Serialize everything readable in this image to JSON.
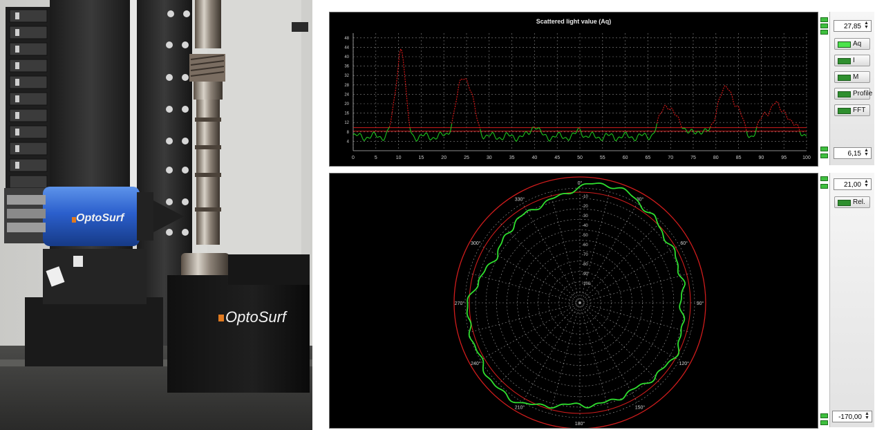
{
  "photo": {
    "brand_sensor": "OptoSurf",
    "brand_box": "OptoSurf"
  },
  "line_chart": {
    "title": "Scattered light value (Aq)",
    "y_ticks": [
      "4",
      "8",
      "12",
      "16",
      "20",
      "24",
      "28",
      "32",
      "36",
      "40",
      "44",
      "48"
    ],
    "x_ticks": [
      "0",
      "5",
      "10",
      "15",
      "20",
      "25",
      "30",
      "35",
      "40",
      "45",
      "50",
      "55",
      "60",
      "65",
      "70",
      "75",
      "80",
      "85",
      "90",
      "95",
      "100"
    ],
    "colors": {
      "low": "#1fc21f",
      "high": "#e01818",
      "threshold": "#d01c1c"
    }
  },
  "polar_chart": {
    "angle_labels": {
      "a0": "0°",
      "a30": "330°",
      "a60": "300°",
      "a90": "270°",
      "a120": "240°",
      "a150": "210°",
      "a180": "180°",
      "a210": "150°",
      "a240": "120°",
      "a270": "90°",
      "a300": "60°",
      "a330": "30°"
    },
    "radial_labels": [
      "-10",
      "-20",
      "-30",
      "-40",
      "-50",
      "-60",
      "-70",
      "-80",
      "-90",
      "-100"
    ],
    "trace_color": "#2fe02f",
    "limit_color": "#d01c1c"
  },
  "controls_top": {
    "upper_value": "27,85",
    "lower_value": "6,15",
    "buttons": [
      "Aq",
      "I",
      "M",
      "Profile",
      "FFT"
    ]
  },
  "controls_bottom": {
    "upper_value": "21,00",
    "lower_value": "-170,00",
    "buttons": [
      "Rel."
    ]
  }
}
